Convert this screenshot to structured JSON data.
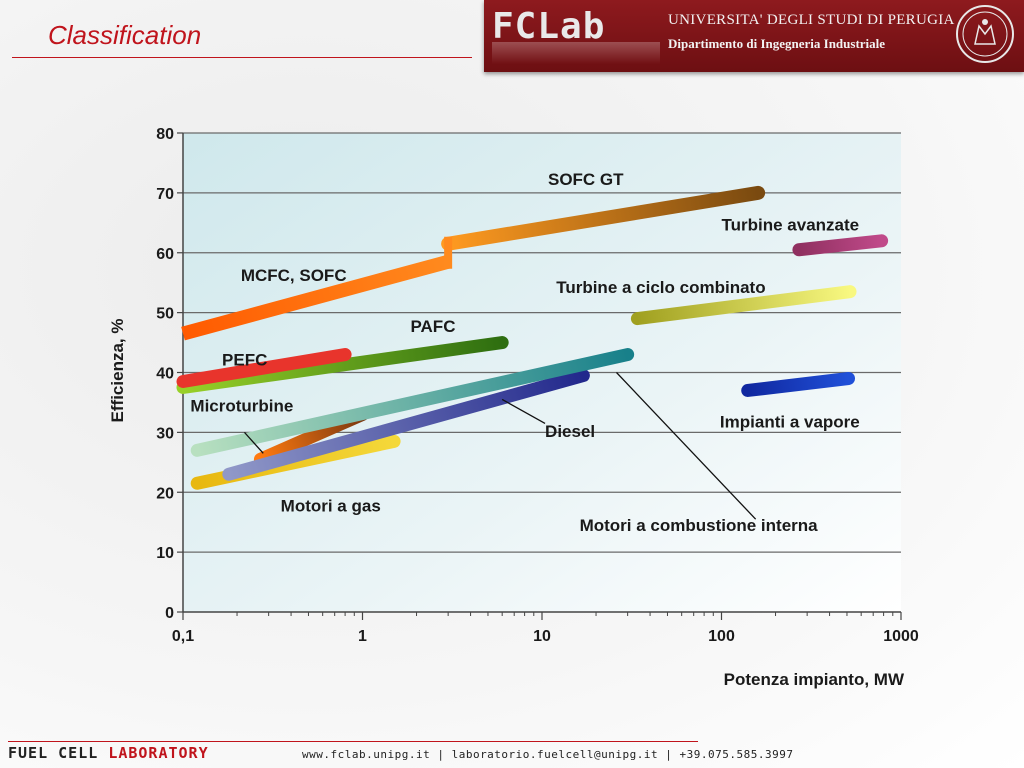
{
  "slide": {
    "title": "Classification"
  },
  "header": {
    "logo_fc": "FC",
    "logo_lab": "Lab",
    "university": "UNIVERSITA' DEGLI STUDI DI PERUGIA",
    "department": "Dipartimento di Ingegneria Industriale",
    "seal_icon": "university-seal-icon",
    "band_color": "#7d1418"
  },
  "footer": {
    "brand_fuel": "FUEL CELL",
    "brand_lab": "LABORATORY",
    "contact": "www.fclab.unipg.it | laboratorio.fuelcell@unipg.it | +39.075.585.3997"
  },
  "chart_data": {
    "type": "line",
    "xlabel": "Potenza impianto, MW",
    "ylabel": "Efficienza, %",
    "xscale": "log",
    "xlim": [
      0.1,
      1000
    ],
    "ylim": [
      0,
      80
    ],
    "xticks": [
      "0,1",
      "1",
      "10",
      "100",
      "1000"
    ],
    "xtick_values": [
      0.1,
      1,
      10,
      100,
      1000
    ],
    "yticks": [
      0,
      10,
      20,
      30,
      40,
      50,
      60,
      70,
      80
    ],
    "grid": true,
    "series": [
      {
        "name": "MCFC, SOFC",
        "color": "#ff5a00",
        "color_end": "#ff8a1e",
        "x": [
          0.1,
          3
        ],
        "y": [
          46.5,
          58.5
        ]
      },
      {
        "name": "SOFC GT",
        "color": "#ff9a20",
        "color_end": "#7a4a10",
        "x": [
          3,
          160
        ],
        "y": [
          61.5,
          70
        ]
      },
      {
        "name": "PAFC",
        "color": "#98d028",
        "color_end": "#2e6e10",
        "x": [
          0.1,
          6
        ],
        "y": [
          37.5,
          45
        ]
      },
      {
        "name": "PEFC",
        "color": "#e8342c",
        "color_end": "#e8342c",
        "x": [
          0.1,
          0.8
        ],
        "y": [
          38.5,
          43
        ]
      },
      {
        "name": "Microturbine",
        "color": "#ff7a10",
        "color_end": "#7a3810",
        "x": [
          0.27,
          1
        ],
        "y": [
          25.5,
          33
        ]
      },
      {
        "name": "Motori a gas",
        "color": "#e8b810",
        "color_end": "#f4d83a",
        "x": [
          0.12,
          1.5
        ],
        "y": [
          21.5,
          28.5
        ]
      },
      {
        "name": "Diesel",
        "color": "#9098c8",
        "color_end": "#22288c",
        "x": [
          0.18,
          17
        ],
        "y": [
          23,
          39.5
        ]
      },
      {
        "name": "Motori a combustione interna",
        "color": "#b8e0c0",
        "color_end": "#18808a",
        "x": [
          0.12,
          30
        ],
        "y": [
          27,
          43
        ]
      },
      {
        "name": "Turbine a ciclo combinato",
        "color": "#a0a020",
        "color_end": "#f8f880",
        "x": [
          34,
          520
        ],
        "y": [
          49,
          53.5
        ]
      },
      {
        "name": "Turbine avanzate",
        "color": "#903060",
        "color_end": "#c04a8a",
        "x": [
          270,
          780
        ],
        "y": [
          60.5,
          62
        ]
      },
      {
        "name": "Impianti a vapore",
        "color": "#1028a0",
        "color_end": "#2050d8",
        "x": [
          140,
          510
        ],
        "y": [
          37,
          39
        ]
      }
    ],
    "labels": [
      {
        "text": "SOFC GT",
        "x": 10.8,
        "y": 71.3
      },
      {
        "text": "MCFC, SOFC",
        "x": 0.21,
        "y": 55.3
      },
      {
        "text": "Turbine avanzate",
        "x": 100,
        "y": 63.7
      },
      {
        "text": "Turbine a ciclo combinato",
        "x": 12,
        "y": 53.3
      },
      {
        "text": "PAFC",
        "x": 1.85,
        "y": 46.8
      },
      {
        "text": "PEFC",
        "x": 0.165,
        "y": 41.2
      },
      {
        "text": "Microturbine",
        "x": 0.11,
        "y": 33.5
      },
      {
        "text": "Impianti a vapore",
        "x": 98,
        "y": 30.8
      },
      {
        "text": "Diesel",
        "x": 10.4,
        "y": 29.2
      },
      {
        "text": "Motori a gas",
        "x": 0.35,
        "y": 16.8
      },
      {
        "text": "Motori a combustione interna",
        "x": 16.2,
        "y": 13.5
      }
    ],
    "leaders": [
      {
        "from": [
          0.22,
          30
        ],
        "to": [
          0.28,
          26.5
        ]
      },
      {
        "from": [
          10.4,
          31.5
        ],
        "to": [
          6.0,
          35.5
        ]
      },
      {
        "from": [
          155,
          15.5
        ],
        "to": [
          26,
          40
        ]
      }
    ]
  }
}
